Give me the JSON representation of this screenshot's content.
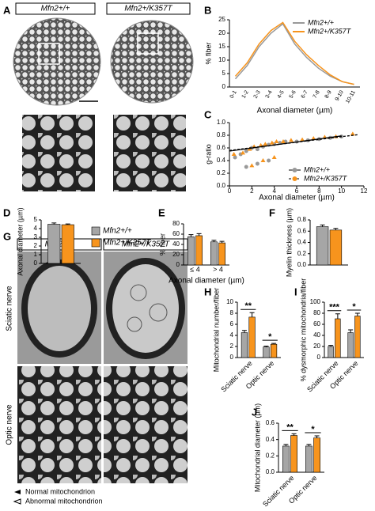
{
  "images": [
    {
      "panel": "A",
      "headers": [
        "Mfn2+/+",
        "Mfn2+/K357T"
      ]
    },
    {
      "panel": "G",
      "headers": [
        "Mfn2+/+",
        "Mfn2+/K357T"
      ],
      "rows": [
        "Sciatic nerve",
        "Optic nerve"
      ],
      "legend": [
        "Normal mitochondrion",
        "Abnormal mitochondrion"
      ]
    }
  ],
  "chart_data": [
    {
      "panel": "B",
      "type": "line",
      "ylabel": "% fiber",
      "xlabel": "Axonal diameter (µm)",
      "categories": [
        "0-1",
        "1-2",
        "2-3",
        "3-4",
        "4-5",
        "5-6",
        "6-7",
        "7-8",
        "8-9",
        "9-10",
        "10-11"
      ],
      "series": [
        {
          "name": "Mfn2+/+",
          "color": "#999999",
          "values": [
            3,
            8,
            15,
            20,
            23.5,
            16,
            11,
            7,
            4,
            2,
            1
          ]
        },
        {
          "name": "Mfn2+/K357T",
          "color": "#f7941d",
          "values": [
            4,
            9,
            16,
            21,
            24,
            17,
            12,
            8,
            4.5,
            2,
            1
          ]
        }
      ],
      "ylim": [
        0,
        25
      ],
      "yticks": [
        0,
        5,
        10,
        15,
        20,
        25
      ],
      "legend": "upper-right"
    },
    {
      "panel": "C",
      "type": "scatter",
      "ylabel": "g-ratio",
      "xlabel": "Axonal diameter (µm)",
      "series": [
        {
          "name": "Mfn2+/+",
          "color": "#999999",
          "x": [
            0.5,
            1,
            1.5,
            2,
            2.5,
            3,
            3.5,
            4,
            4.5,
            5,
            6,
            7,
            8,
            9,
            10,
            1.5,
            2.5,
            3.5
          ],
          "y": [
            0.45,
            0.5,
            0.55,
            0.6,
            0.58,
            0.62,
            0.65,
            0.66,
            0.68,
            0.7,
            0.7,
            0.72,
            0.74,
            0.76,
            0.78,
            0.3,
            0.35,
            0.4
          ],
          "fit_x": [
            0,
            10
          ],
          "fit_y": [
            0.55,
            0.79
          ]
        },
        {
          "name": "Mfn2+/K357T",
          "color": "#f7941d",
          "x": [
            0.4,
            1.2,
            1.8,
            2.2,
            2.8,
            3.2,
            3.8,
            4.2,
            4.8,
            5.5,
            6.5,
            7.5,
            8.5,
            9.5,
            11,
            2,
            3,
            4
          ],
          "y": [
            0.5,
            0.52,
            0.58,
            0.62,
            0.64,
            0.66,
            0.68,
            0.7,
            0.7,
            0.72,
            0.73,
            0.75,
            0.77,
            0.78,
            0.82,
            0.32,
            0.4,
            0.45
          ],
          "fit_x": [
            0,
            11.5
          ],
          "fit_y": [
            0.56,
            0.81
          ]
        }
      ],
      "xlim": [
        0,
        12
      ],
      "xticks": [
        0,
        2,
        4,
        6,
        8,
        10,
        12
      ],
      "ylim": [
        0,
        1
      ],
      "yticks": [
        {
          "value": 0,
          "label": "0.0"
        },
        0.2,
        0.4,
        0.6,
        0.8,
        {
          "value": 1,
          "label": "1.0"
        }
      ],
      "legend": "lower-right"
    },
    {
      "panel": "D",
      "type": "bar",
      "ylabel": "Axonal diameter (µm)",
      "series": [
        {
          "name": "Mfn2+/+",
          "color": "#a6a6a6",
          "values": [
            4.5
          ],
          "errors": [
            0.15
          ]
        },
        {
          "name": "Mfn2+/K357T",
          "color": "#f7941d",
          "values": [
            4.45
          ],
          "errors": [
            0.08
          ]
        }
      ],
      "ylim": [
        0,
        5
      ],
      "yticks": [
        0,
        1,
        2,
        3,
        4,
        5
      ],
      "legend": "right"
    },
    {
      "panel": "E",
      "type": "bar",
      "ylabel": "% fiber",
      "xlabel": "Axonal diameter (µm)",
      "categories": [
        "≤ 4",
        "> 4"
      ],
      "series": [
        {
          "color": "#a6a6a6",
          "values": [
            55,
            45
          ],
          "errors": [
            4,
            3
          ]
        },
        {
          "color": "#f7941d",
          "values": [
            57,
            43
          ],
          "errors": [
            4,
            3
          ]
        }
      ],
      "ylim": [
        0,
        80
      ],
      "yticks": [
        0,
        20,
        40,
        60,
        80
      ]
    },
    {
      "panel": "F",
      "type": "bar",
      "ylabel": "Myelin thickness (µm)",
      "series": [
        {
          "color": "#a6a6a6",
          "values": [
            0.68
          ],
          "errors": [
            0.03
          ]
        },
        {
          "color": "#f7941d",
          "values": [
            0.62
          ],
          "errors": [
            0.03
          ]
        }
      ],
      "ylim": [
        0,
        0.8
      ],
      "yticks": [
        {
          "value": 0,
          "label": "0.0"
        },
        0.2,
        0.4,
        0.6,
        0.8
      ]
    },
    {
      "panel": "H",
      "type": "bar",
      "ylabel": "Mitochondrial number/fiber",
      "categories": [
        "Sciatic nerve",
        "Optic nerve"
      ],
      "significance": [
        "**",
        "*"
      ],
      "series": [
        {
          "color": "#a6a6a6",
          "values": [
            4.5,
            1.9
          ],
          "errors": [
            0.4,
            0.15
          ]
        },
        {
          "color": "#f7941d",
          "values": [
            7.3,
            2.4
          ],
          "errors": [
            0.8,
            0.15
          ]
        }
      ],
      "ylim": [
        0,
        10
      ],
      "yticks": [
        0,
        2,
        4,
        6,
        8,
        10
      ]
    },
    {
      "panel": "I",
      "type": "bar",
      "ylabel": "% dysmorphic mitochondria/fiber",
      "categories": [
        "Sciatic nerve",
        "Optic nerve"
      ],
      "significance": [
        "***",
        "*"
      ],
      "series": [
        {
          "color": "#a6a6a6",
          "values": [
            20,
            45
          ],
          "errors": [
            2,
            5
          ]
        },
        {
          "color": "#f7941d",
          "values": [
            70,
            75
          ],
          "errors": [
            9,
            5
          ]
        }
      ],
      "ylim": [
        0,
        100
      ],
      "yticks": [
        0,
        20,
        40,
        60,
        80,
        100
      ]
    },
    {
      "panel": "J",
      "type": "bar",
      "ylabel": "Mitochondrial diameter (µm)",
      "categories": [
        "Sciatic nerve",
        "Optic nerve"
      ],
      "significance": [
        "**",
        "*"
      ],
      "series": [
        {
          "color": "#a6a6a6",
          "values": [
            0.32,
            0.32
          ],
          "errors": [
            0.02,
            0.02
          ]
        },
        {
          "color": "#f7941d",
          "values": [
            0.45,
            0.42
          ],
          "errors": [
            0.02,
            0.025
          ]
        }
      ],
      "ylim": [
        0,
        0.6
      ],
      "yticks": [
        {
          "value": 0,
          "label": "0.0"
        },
        0.2,
        0.4,
        0.6
      ]
    }
  ]
}
